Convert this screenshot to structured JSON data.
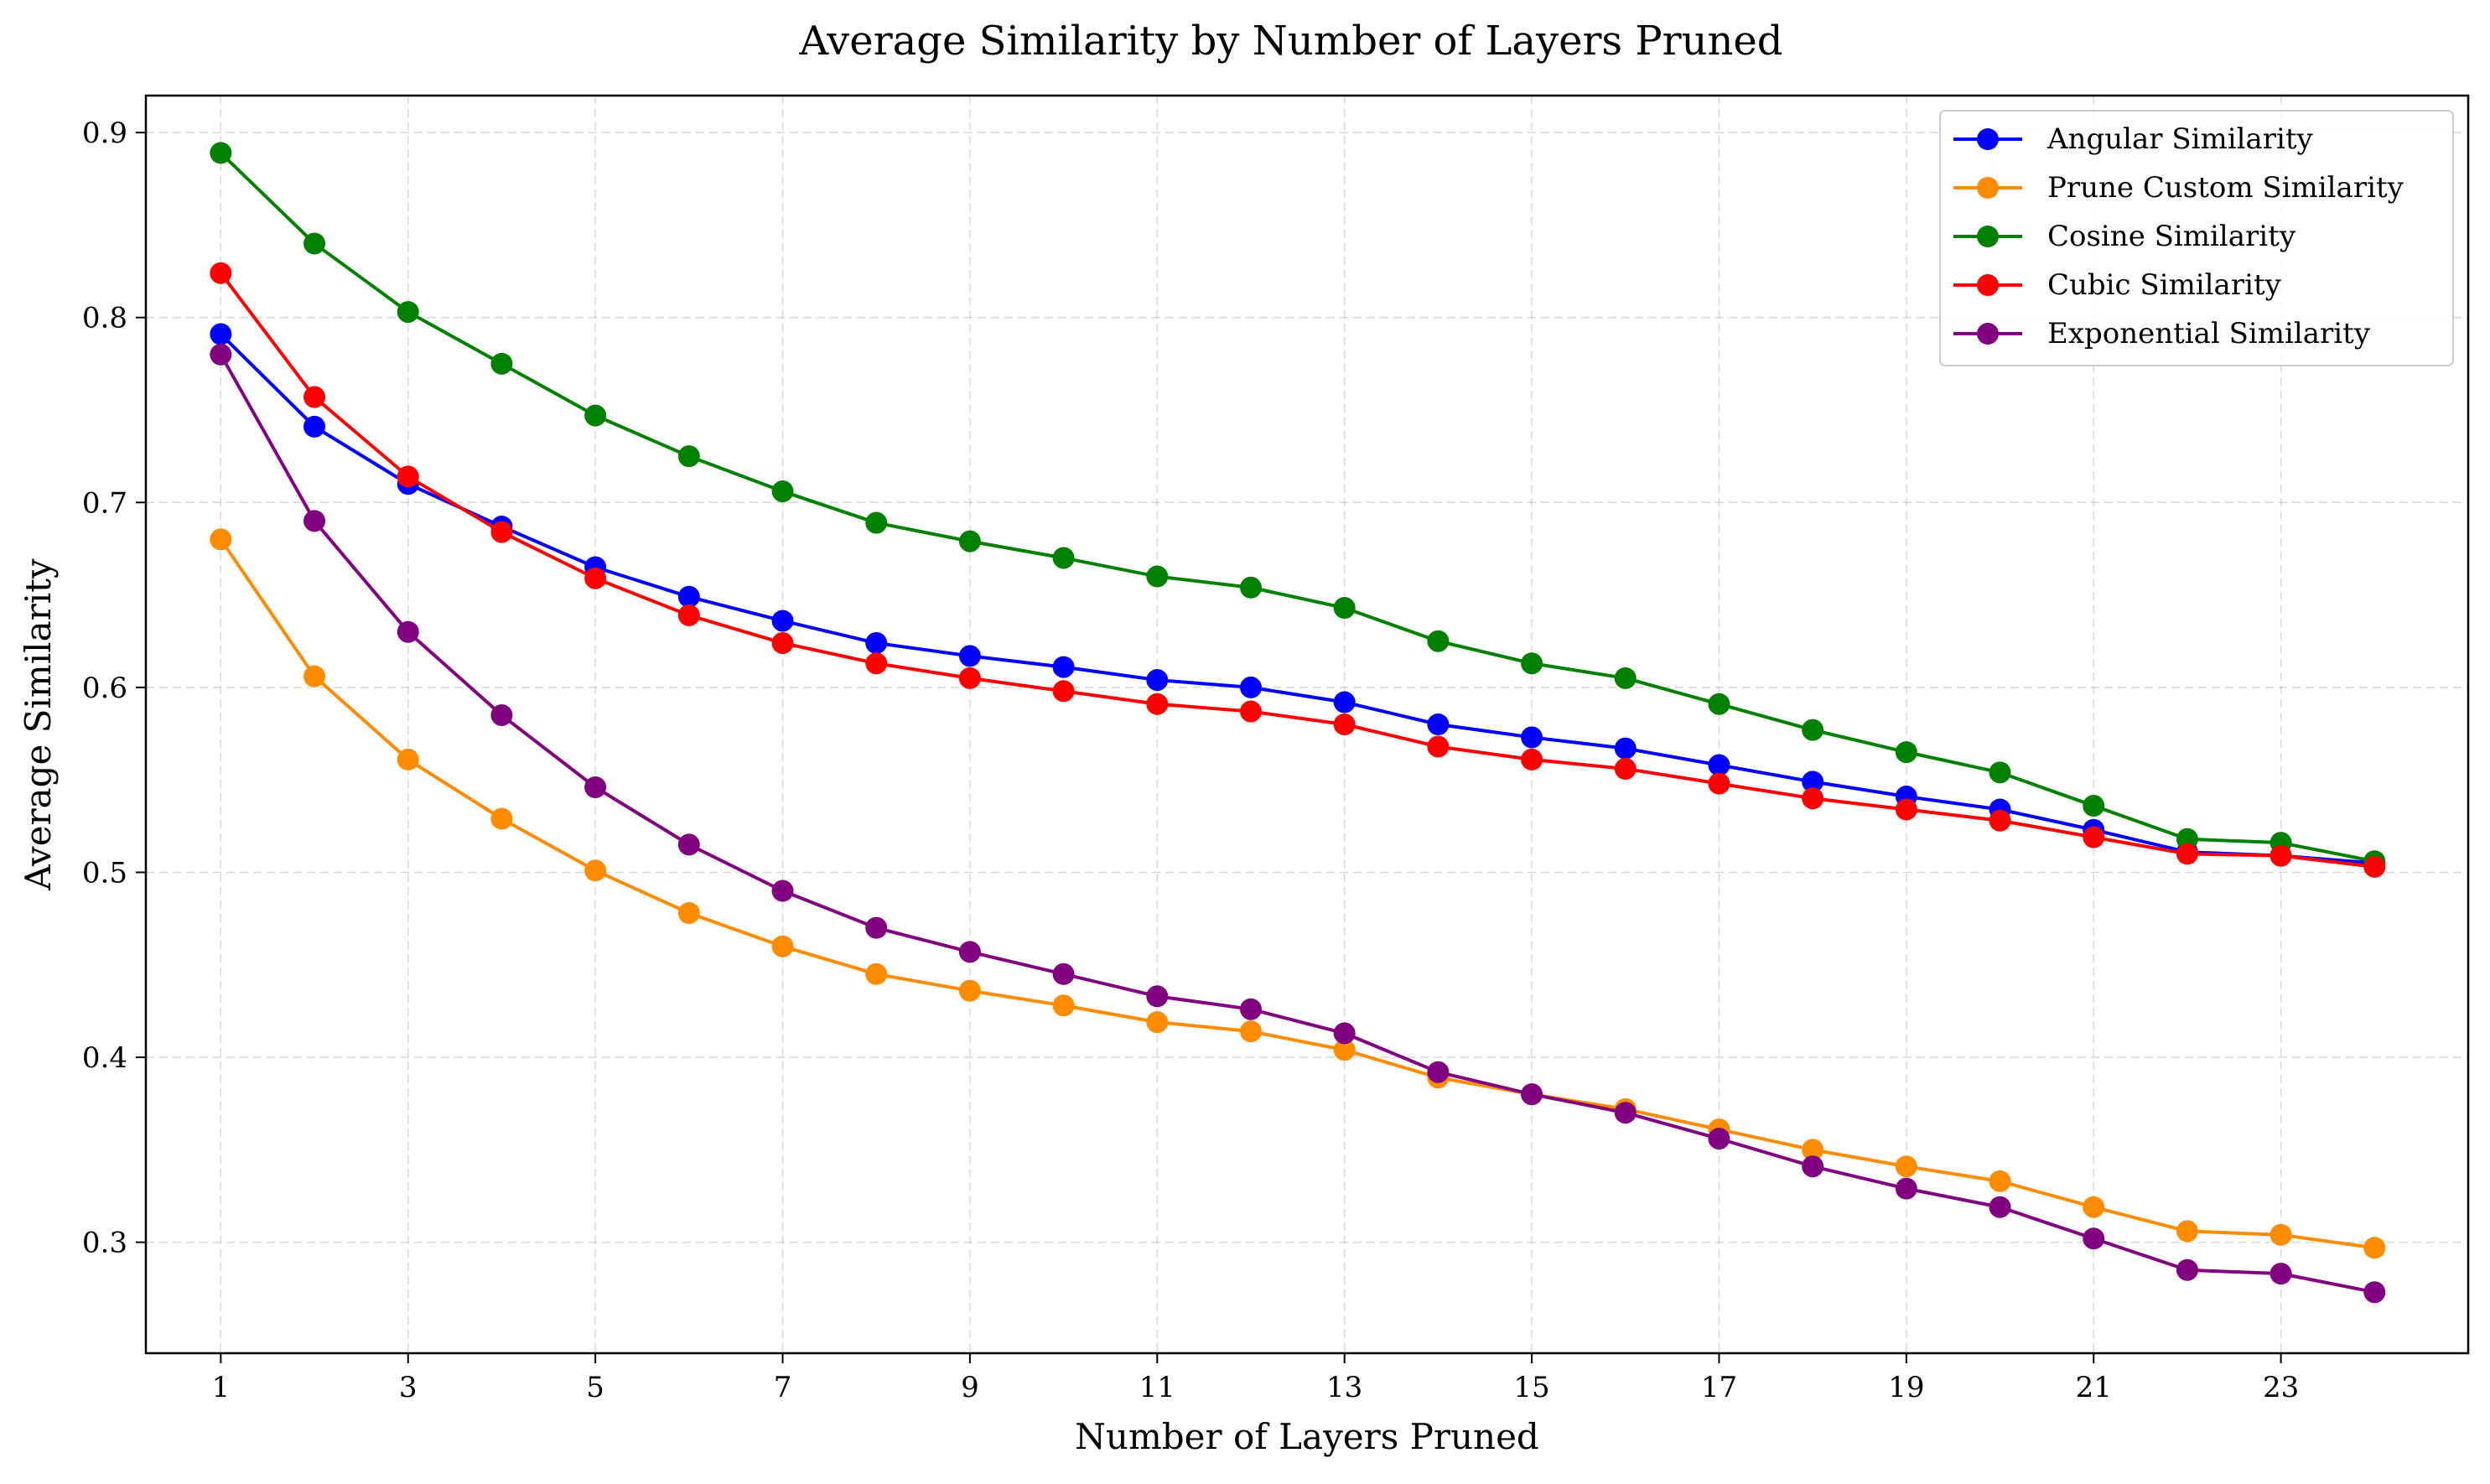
{
  "chart_data": {
    "type": "line",
    "title": "Average Similarity by Number of Layers Pruned",
    "xlabel": "Number of Layers Pruned",
    "ylabel": "Average Similarity",
    "x": [
      1,
      2,
      3,
      4,
      5,
      6,
      7,
      8,
      9,
      10,
      11,
      12,
      13,
      14,
      15,
      16,
      17,
      18,
      19,
      20,
      21,
      22,
      23,
      24
    ],
    "xticks": [
      1,
      3,
      5,
      7,
      9,
      11,
      13,
      15,
      17,
      19,
      21,
      23
    ],
    "xlim": [
      0.2,
      25.0
    ],
    "yticks": [
      0.3,
      0.4,
      0.5,
      0.6,
      0.7,
      0.8,
      0.9
    ],
    "ylim": [
      0.24,
      0.92
    ],
    "grid": true,
    "legend_position": "top-right",
    "series": [
      {
        "name": "Angular Similarity",
        "color": "#0000ff",
        "values": [
          0.791,
          0.741,
          0.71,
          0.687,
          0.665,
          0.649,
          0.636,
          0.624,
          0.617,
          0.611,
          0.604,
          0.6,
          0.592,
          0.58,
          0.573,
          0.567,
          0.558,
          0.549,
          0.541,
          0.534,
          0.523,
          0.511,
          0.509,
          0.505
        ]
      },
      {
        "name": "Prune Custom Similarity",
        "color": "#ff8c00",
        "values": [
          0.68,
          0.606,
          0.561,
          0.529,
          0.501,
          0.478,
          0.46,
          0.445,
          0.436,
          0.428,
          0.419,
          0.414,
          0.404,
          0.389,
          0.38,
          0.372,
          0.361,
          0.35,
          0.341,
          0.333,
          0.319,
          0.306,
          0.304,
          0.297
        ]
      },
      {
        "name": "Cosine Similarity",
        "color": "#008000",
        "values": [
          0.889,
          0.84,
          0.803,
          0.775,
          0.747,
          0.725,
          0.706,
          0.689,
          0.679,
          0.67,
          0.66,
          0.654,
          0.643,
          0.625,
          0.613,
          0.605,
          0.591,
          0.577,
          0.565,
          0.554,
          0.536,
          0.518,
          0.516,
          0.506
        ]
      },
      {
        "name": "Cubic Similarity",
        "color": "#ff0000",
        "values": [
          0.824,
          0.757,
          0.714,
          0.684,
          0.659,
          0.639,
          0.624,
          0.613,
          0.605,
          0.598,
          0.591,
          0.587,
          0.58,
          0.568,
          0.561,
          0.556,
          0.548,
          0.54,
          0.534,
          0.528,
          0.519,
          0.51,
          0.509,
          0.503
        ]
      },
      {
        "name": "Exponential Similarity",
        "color": "#800080",
        "values": [
          0.78,
          0.69,
          0.63,
          0.585,
          0.546,
          0.515,
          0.49,
          0.47,
          0.457,
          0.445,
          0.433,
          0.426,
          0.413,
          0.392,
          0.38,
          0.37,
          0.356,
          0.341,
          0.329,
          0.319,
          0.302,
          0.285,
          0.283,
          0.273
        ]
      }
    ]
  }
}
